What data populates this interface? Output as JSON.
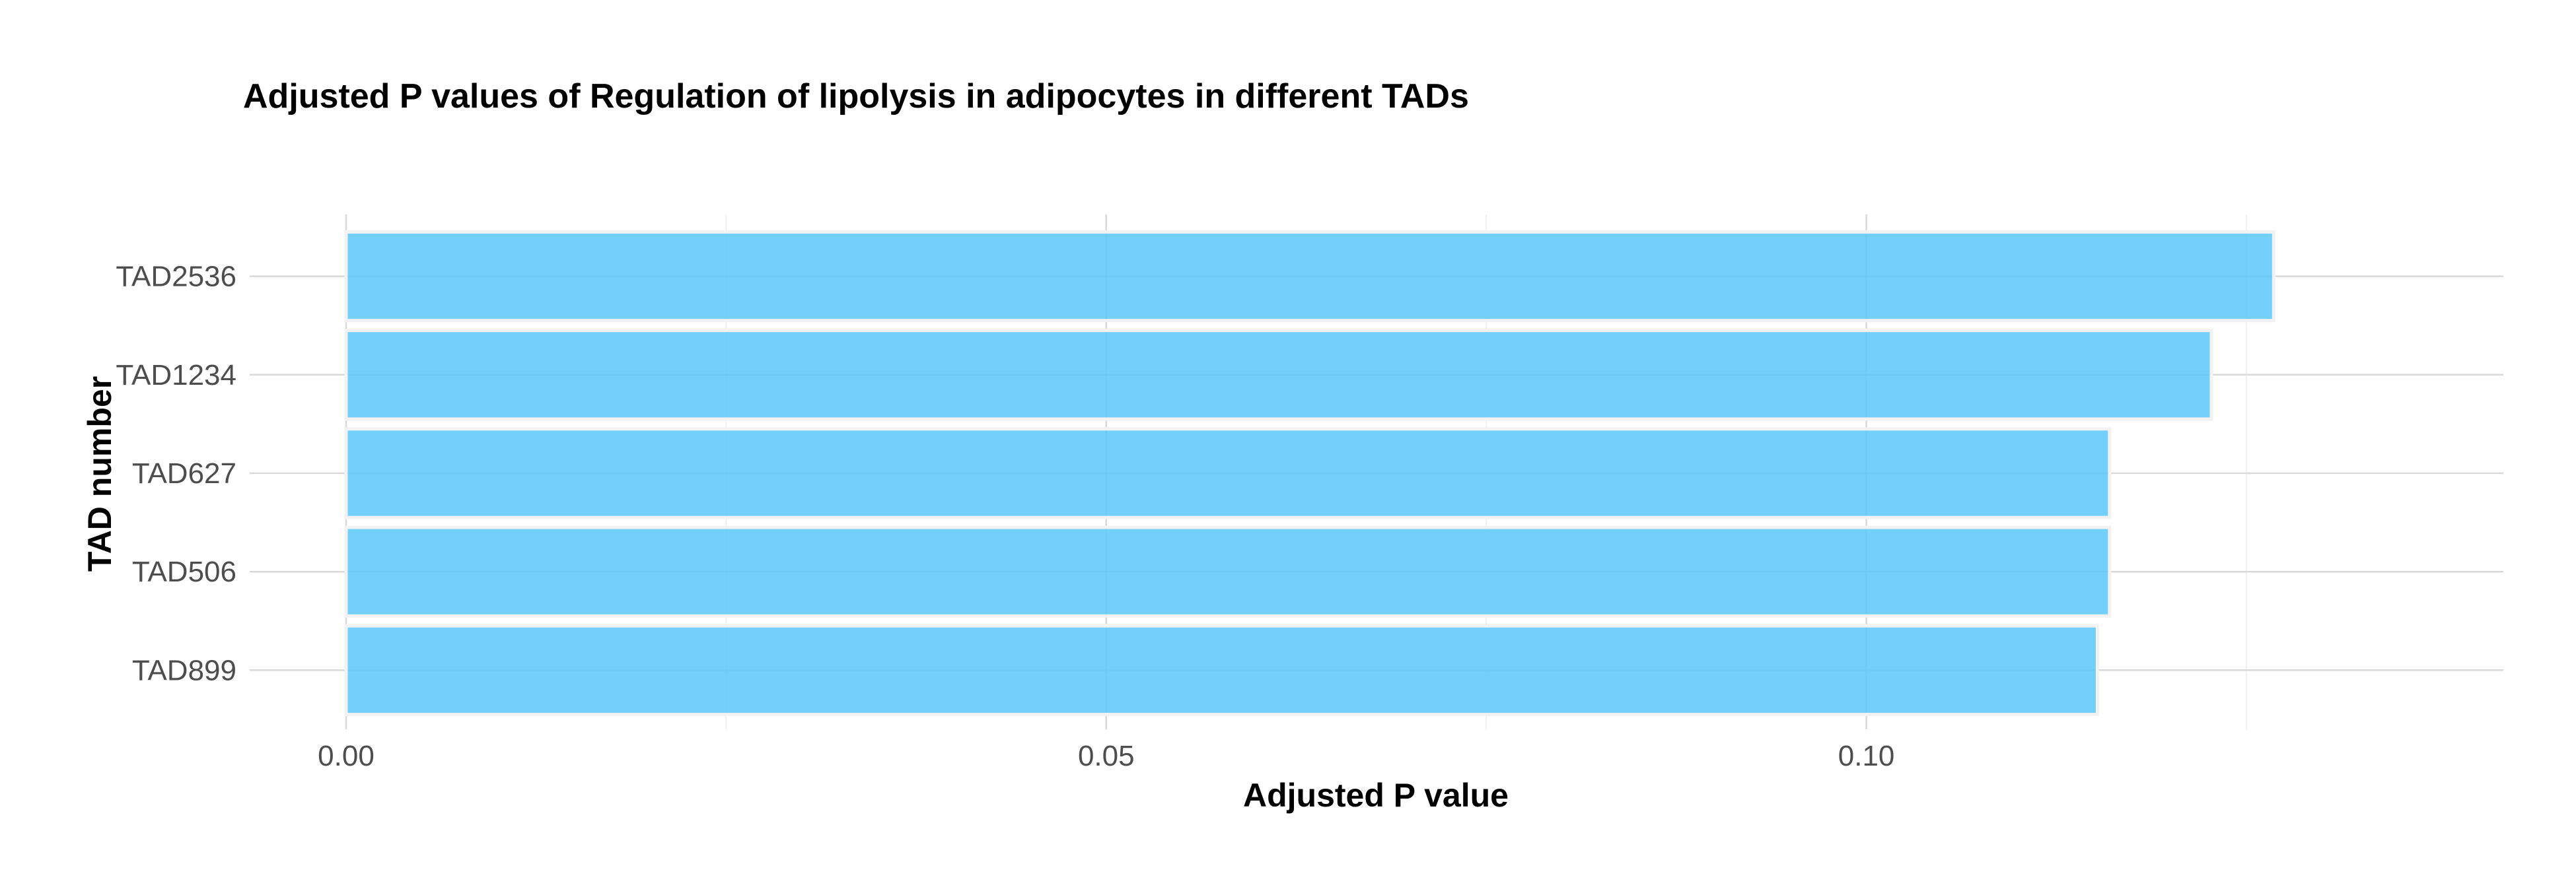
{
  "chart_data": {
    "type": "bar",
    "orientation": "horizontal",
    "title": "Adjusted P values of Regulation of lipolysis in adipocytes in different TADs",
    "xlabel": "Adjusted P value",
    "ylabel": "TAD number",
    "categories": [
      "TAD2536",
      "TAD1234",
      "TAD627",
      "TAD506",
      "TAD899"
    ],
    "values": [
      0.1268,
      0.1227,
      0.116,
      0.116,
      0.1152
    ],
    "xlim": [
      0,
      0.1333
    ],
    "x_ticks": [
      0.0,
      0.05,
      0.1
    ],
    "x_tick_labels": [
      "0.00",
      "0.05",
      "0.10"
    ],
    "bar_color": "#5ac8fa",
    "grid": true,
    "legend": "none"
  }
}
